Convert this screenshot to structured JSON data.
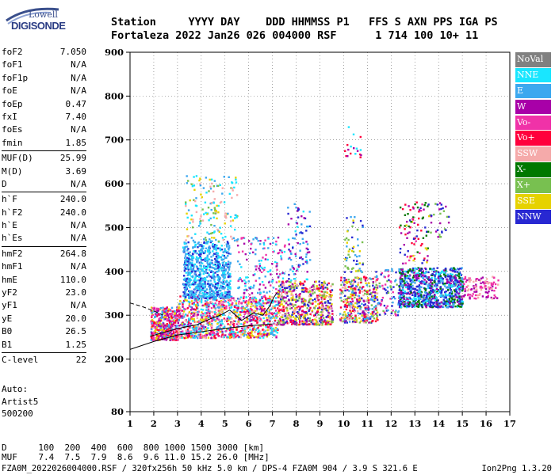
{
  "logo": {
    "line1": "Lowell",
    "line2": "DIGISONDE"
  },
  "header": {
    "line1": "Station     YYYY DAY    DDD HHMMSS P1   FFS S AXN PPS IGA PS",
    "line2": "Fortaleza 2022 Jan26 026 004000 RSF      1 714 100 10+ 11"
  },
  "params": {
    "group1": [
      {
        "label": "foF2",
        "value": "7.050"
      },
      {
        "label": "foF1",
        "value": "N/A"
      },
      {
        "label": "foF1p",
        "value": "N/A"
      },
      {
        "label": "foE",
        "value": "N/A"
      },
      {
        "label": "foEp",
        "value": "0.47"
      },
      {
        "label": "fxI",
        "value": "7.40"
      },
      {
        "label": "foEs",
        "value": "N/A"
      },
      {
        "label": "fmin",
        "value": "1.85"
      }
    ],
    "group2": [
      {
        "label": "MUF(D)",
        "value": "25.99"
      },
      {
        "label": "M(D)",
        "value": "3.69"
      },
      {
        "label": "D",
        "value": "N/A"
      }
    ],
    "group3": [
      {
        "label": "h`F",
        "value": "240.0"
      },
      {
        "label": "h`F2",
        "value": "240.0"
      },
      {
        "label": "h`E",
        "value": "N/A"
      },
      {
        "label": "h`Es",
        "value": "N/A"
      }
    ],
    "group4": [
      {
        "label": "hmF2",
        "value": "264.8"
      },
      {
        "label": "hmF1",
        "value": "N/A"
      },
      {
        "label": "hmE",
        "value": "110.0"
      },
      {
        "label": "yF2",
        "value": "23.0"
      },
      {
        "label": "yF1",
        "value": "N/A"
      },
      {
        "label": "yE",
        "value": "20.0"
      },
      {
        "label": "B0",
        "value": "26.5"
      },
      {
        "label": "B1",
        "value": "1.25"
      }
    ],
    "group5": [
      {
        "label": "C-level",
        "value": "22"
      }
    ]
  },
  "autoscaling": {
    "line1": "Auto:",
    "line2": "Artist5",
    "line3": "500200"
  },
  "legend": [
    {
      "label": "NoVal",
      "color": "#808080"
    },
    {
      "label": "NNE",
      "color": "#19e6ff"
    },
    {
      "label": "E",
      "color": "#3ca8ef"
    },
    {
      "label": "W",
      "color": "#a800a8"
    },
    {
      "label": "Vo-",
      "color": "#f032a8"
    },
    {
      "label": "Vo+",
      "color": "#ff003c"
    },
    {
      "label": "SSW",
      "color": "#f5aaaa"
    },
    {
      "label": "X-",
      "color": "#007800"
    },
    {
      "label": "X+",
      "color": "#78c050"
    },
    {
      "label": "SSE",
      "color": "#e6d200"
    },
    {
      "label": "NNW",
      "color": "#2828d2"
    }
  ],
  "footer": {
    "line1": "D      100  200  400  600  800 1000 1500 3000 [km]",
    "line2": "MUF    7.4  7.5  7.9  8.6  9.6 11.0 15.2 26.0 [MHz]",
    "line3": "FZA0M_2022026004000.RSF / 320fx256h 50 kHz 5.0 km / DPS-4 FZA0M 904 / 3.9 S 321.6 E",
    "version": "Ion2Png 1.3.20"
  },
  "chart_data": {
    "type": "scatter",
    "xlabel": "",
    "ylabel": "",
    "xlim": [
      1,
      17
    ],
    "ylim": [
      80,
      900
    ],
    "xticks": [
      1,
      2,
      3,
      4,
      5,
      6,
      7,
      8,
      9,
      10,
      11,
      12,
      13,
      14,
      15,
      16,
      17
    ],
    "yticks": [
      80,
      200,
      300,
      400,
      500,
      600,
      700,
      800,
      900
    ],
    "grid": true,
    "legend_position": "right",
    "clusters": [
      {
        "fmin": 1.85,
        "fmax": 3.0,
        "hmin": 245,
        "hmax": 320,
        "count": 420,
        "colors": [
          "ff003c",
          "a800a8",
          "f032a8",
          "e6d200",
          "3ca8ef"
        ]
      },
      {
        "fmin": 3.0,
        "fmax": 7.2,
        "hmin": 250,
        "hmax": 345,
        "count": 1100,
        "colors": [
          "ff003c",
          "a800a8",
          "e6d200",
          "f5aaaa",
          "f032a8",
          "3ca8ef",
          "19e6ff"
        ]
      },
      {
        "fmin": 3.2,
        "fmax": 5.2,
        "hmin": 340,
        "hmax": 470,
        "count": 800,
        "colors": [
          "3ca8ef",
          "19e6ff",
          "2828d2",
          "3ca8ef"
        ]
      },
      {
        "fmin": 3.3,
        "fmax": 5.5,
        "hmin": 470,
        "hmax": 620,
        "count": 160,
        "colors": [
          "3ca8ef",
          "19e6ff",
          "e6d200",
          "f5aaaa",
          "78c050"
        ]
      },
      {
        "fmin": 5.5,
        "fmax": 7.5,
        "hmin": 330,
        "hmax": 480,
        "count": 180,
        "colors": [
          "3ca8ef",
          "19e6ff",
          "a800a8",
          "f032a8"
        ]
      },
      {
        "fmin": 7.2,
        "fmax": 9.5,
        "hmin": 280,
        "hmax": 380,
        "count": 600,
        "colors": [
          "f5aaaa",
          "e6d200",
          "ff003c",
          "a800a8",
          "2828d2",
          "78c050"
        ]
      },
      {
        "fmin": 7.6,
        "fmax": 8.6,
        "hmin": 380,
        "hmax": 560,
        "count": 90,
        "colors": [
          "2828d2",
          "a800a8",
          "3ca8ef",
          "19e6ff"
        ]
      },
      {
        "fmin": 9.8,
        "fmax": 11.4,
        "hmin": 285,
        "hmax": 390,
        "count": 380,
        "colors": [
          "e6d200",
          "f5aaaa",
          "ff003c",
          "a800a8",
          "2828d2",
          "78c050",
          "3ca8ef"
        ]
      },
      {
        "fmin": 10.0,
        "fmax": 10.8,
        "hmin": 400,
        "hmax": 530,
        "count": 60,
        "colors": [
          "2828d2",
          "e6d200",
          "3ca8ef",
          "78c050"
        ]
      },
      {
        "fmin": 10.0,
        "fmax": 10.7,
        "hmin": 660,
        "hmax": 740,
        "count": 18,
        "colors": [
          "19e6ff",
          "a800a8",
          "ff003c"
        ]
      },
      {
        "fmin": 11.3,
        "fmax": 12.4,
        "hmin": 300,
        "hmax": 410,
        "count": 90,
        "colors": [
          "2828d2",
          "78c050",
          "f032a8",
          "3ca8ef"
        ]
      },
      {
        "fmin": 12.3,
        "fmax": 15.0,
        "hmin": 320,
        "hmax": 410,
        "count": 900,
        "colors": [
          "2828d2",
          "2828d2",
          "3ca8ef",
          "a800a8",
          "19e6ff",
          "007800"
        ]
      },
      {
        "fmin": 12.3,
        "fmax": 13.6,
        "hmin": 420,
        "hmax": 560,
        "count": 90,
        "colors": [
          "007800",
          "ff003c",
          "e6d200",
          "f032a8",
          "2828d2",
          "a800a8"
        ]
      },
      {
        "fmin": 13.6,
        "fmax": 14.4,
        "hmin": 480,
        "hmax": 560,
        "count": 30,
        "colors": [
          "2828d2",
          "a800a8",
          "78c050"
        ]
      },
      {
        "fmin": 15.0,
        "fmax": 16.5,
        "hmin": 340,
        "hmax": 390,
        "count": 120,
        "colors": [
          "a800a8",
          "f032a8",
          "f5aaaa"
        ]
      }
    ],
    "trace_lines": [
      {
        "name": "lower",
        "points": [
          [
            1,
            222
          ],
          [
            2,
            240
          ],
          [
            3,
            255
          ],
          [
            4,
            262
          ],
          [
            5,
            270
          ],
          [
            6,
            276
          ],
          [
            7,
            280
          ]
        ]
      },
      {
        "name": "upper-left",
        "points": [
          [
            1,
            328
          ],
          [
            1.5,
            320
          ],
          [
            2,
            310
          ],
          [
            2.4,
            300
          ]
        ]
      },
      {
        "name": "profile",
        "points": [
          [
            1.85,
            252
          ],
          [
            2.5,
            262
          ],
          [
            3.2,
            272
          ],
          [
            3.8,
            278
          ],
          [
            4.4,
            292
          ],
          [
            4.8,
            300
          ],
          [
            5.2,
            312
          ],
          [
            5.7,
            288
          ],
          [
            6.2,
            305
          ],
          [
            6.6,
            300
          ],
          [
            6.9,
            322
          ],
          [
            7.05,
            340
          ],
          [
            7.2,
            352
          ]
        ]
      }
    ]
  }
}
